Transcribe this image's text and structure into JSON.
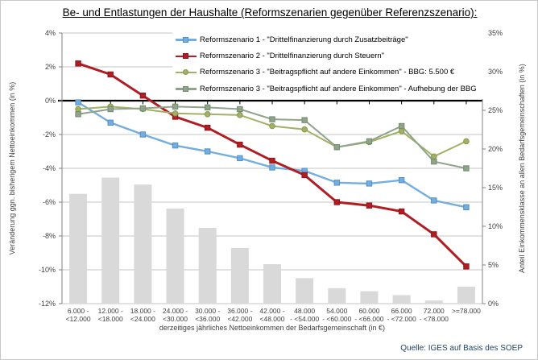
{
  "title": "Be- und Entlastungen der Haushalte (Reformszenarien gegenüber Referenzszenario):",
  "source": "Quelle: IGES auf Basis des SOEP",
  "chart_data": {
    "type": "combo-line-bar",
    "grid": true,
    "legend_position": "top-inside",
    "x_axis": {
      "label": "derzeitiges jährliches Nettoeinkommen der Bedarfsgemeinschaft (in €)",
      "categories": [
        "6.000 - <12.000",
        "12.000 - <18.000",
        "18.000 - <24.000",
        "24.000 - <30.000",
        "30.000 - <36.000",
        "36.000 - <42.000",
        "42.000 - <48.000",
        "48.000 - <54.000",
        "54.000 - <60.000",
        "60.000 - <66.000",
        "66.000 - <72.000",
        "72.000 - <78.000",
        ">=78.000"
      ],
      "category_labels_two_line": [
        [
          "6.000 -",
          "<12.000"
        ],
        [
          "12.000 -",
          "<18.000"
        ],
        [
          "18.000 -",
          "<24.000"
        ],
        [
          "24.000 -",
          "<30.000"
        ],
        [
          "30.000 -",
          "<36.000"
        ],
        [
          "36.000 -",
          "<42.000"
        ],
        [
          "42.000 -",
          "<48.000"
        ],
        [
          "48.000",
          "- <54.000"
        ],
        [
          "54.000",
          "- <60.000"
        ],
        [
          "60.000",
          "- <66.000"
        ],
        [
          "66.000",
          "- <72.000"
        ],
        [
          "72.000",
          "- <78.000"
        ],
        [
          ">=78.000",
          ""
        ]
      ]
    },
    "y_left": {
      "label": "Veränderung ggn. bisherigem Nettoeinkommen (in %)",
      "min": -12,
      "max": 4,
      "step": 2,
      "tick_suffix": "%"
    },
    "y_right": {
      "label": "Anteil Einkommensklasse an allen Bedarfsgemeinschaften (in %)",
      "min": 0,
      "max": 35,
      "step": 5,
      "tick_suffix": "%"
    },
    "series": [
      {
        "name": "Anteil Einkommensklasse an allen Bedarfsgemeinschaften (in %)",
        "type": "bar",
        "axis": "right",
        "in_legend": false,
        "color": "#d9d9d9",
        "values": [
          14.2,
          16.3,
          15.4,
          12.3,
          9.8,
          7.2,
          5.1,
          3.3,
          2.0,
          1.6,
          1.1,
          0.4,
          2.2
        ]
      },
      {
        "name": "Reformszenario 1 - \"Drittelfinanzierung durch Zusatzbeiträge\"",
        "type": "line",
        "axis": "left",
        "in_legend": true,
        "color": "#74aedf",
        "edge": "#5590c4",
        "marker": "square",
        "width": 2.4,
        "values": [
          -0.1,
          -1.3,
          -2.0,
          -2.65,
          -3.0,
          -3.4,
          -3.95,
          -4.15,
          -4.85,
          -4.9,
          -4.7,
          -5.9,
          -6.3
        ]
      },
      {
        "name": "Reformszenario 2 - \"Drittelfinanzierung durch Steuern\"",
        "type": "line",
        "axis": "left",
        "in_legend": true,
        "color": "#b01e24",
        "edge": "#8c161c",
        "marker": "square",
        "width": 3,
        "values": [
          2.2,
          1.55,
          0.3,
          -0.95,
          -1.6,
          -2.6,
          -3.55,
          -4.4,
          -6.0,
          -6.2,
          -6.55,
          -7.9,
          -9.8
        ]
      },
      {
        "name": "Reformszenario 3 - \"Beitragspflicht auf andere Einkommen\" - BBG: 5.500 €",
        "type": "line",
        "axis": "left",
        "in_legend": true,
        "color": "#a3b164",
        "edge": "#88974e",
        "marker": "circle",
        "width": 2,
        "values": [
          -0.5,
          -0.35,
          -0.5,
          -0.75,
          -0.8,
          -0.85,
          -1.5,
          -1.7,
          -2.75,
          -2.45,
          -1.8,
          -3.3,
          -2.4
        ]
      },
      {
        "name": "Reformszenario 3 - \"Beitragspflicht auf andere Einkommen\" - Aufhebung der BBG",
        "type": "line",
        "axis": "left",
        "in_legend": true,
        "color": "#8fa48a",
        "edge": "#748c6f",
        "marker": "square",
        "width": 2,
        "values": [
          -0.8,
          -0.5,
          -0.45,
          -0.35,
          -0.4,
          -0.5,
          -1.1,
          -1.15,
          -2.75,
          -2.4,
          -1.5,
          -3.6,
          -4.0
        ]
      }
    ],
    "colors": {
      "gridline": "#c4c4c4",
      "zero_axis": "#000000",
      "axis_line": "#808080",
      "tick_text": "#3f3f3f",
      "source_text": "#1f4468"
    }
  }
}
